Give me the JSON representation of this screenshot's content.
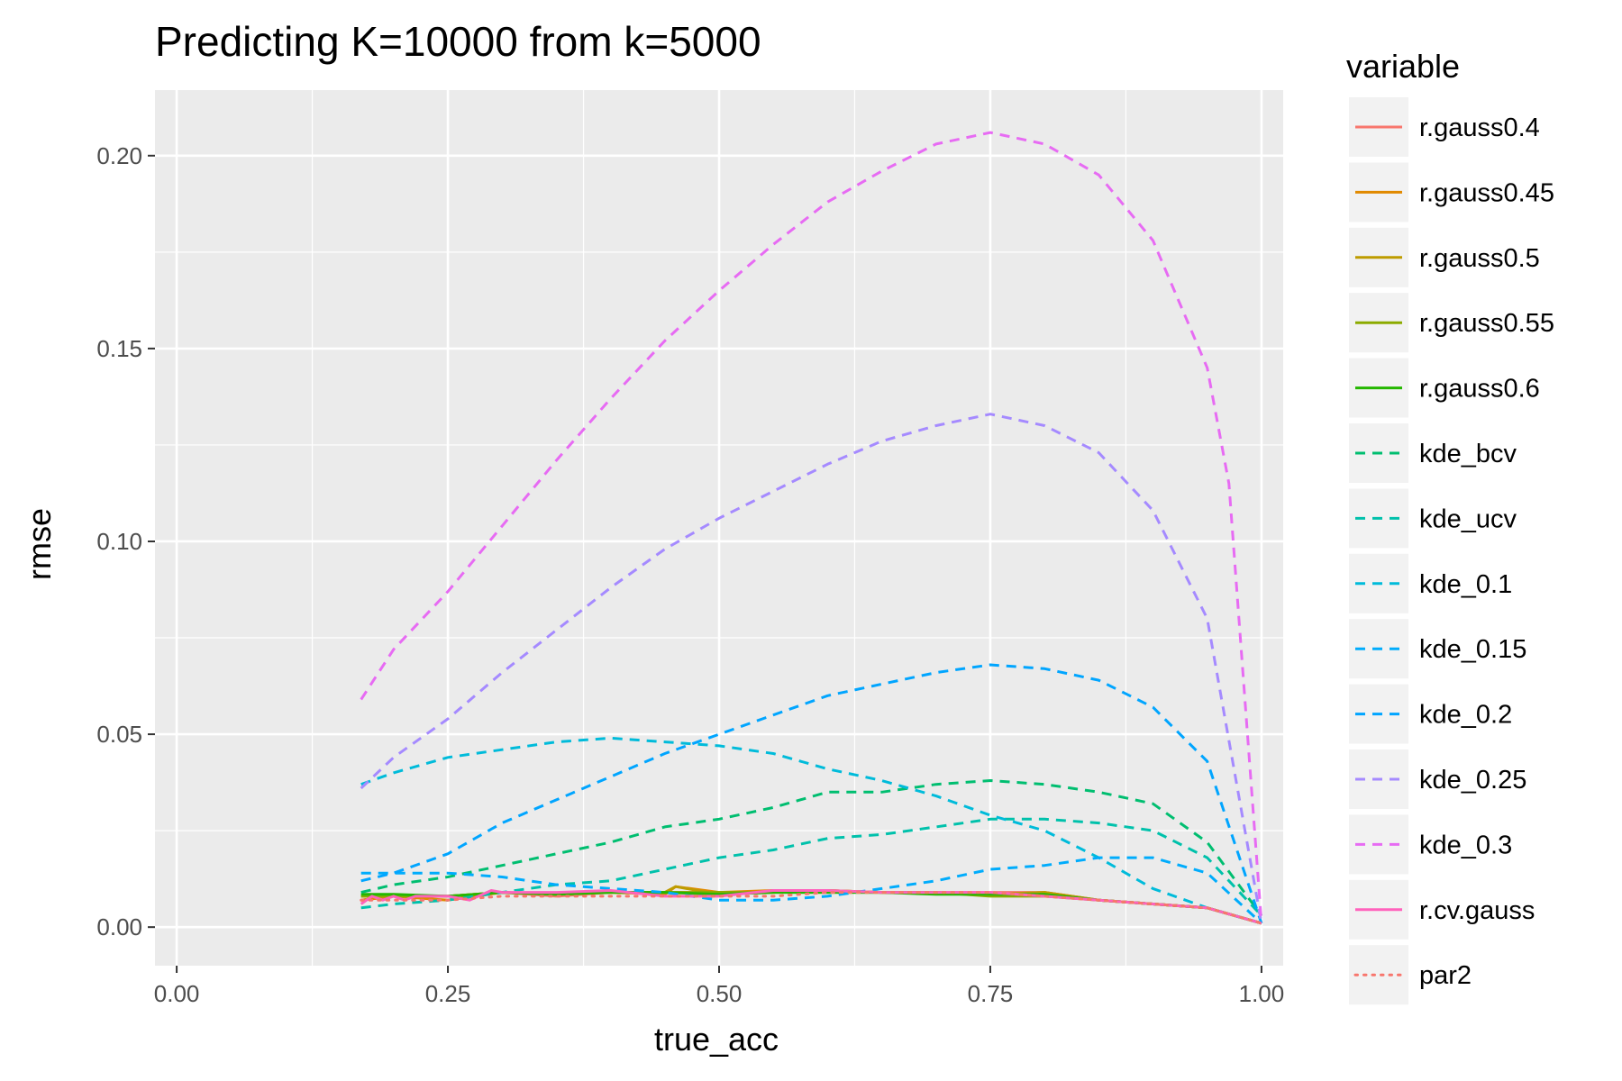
{
  "chart_data": {
    "type": "line",
    "title": "Predicting K=10000 from k=5000",
    "xlabel": "true_acc",
    "ylabel": "rmse",
    "xlim": [
      -0.02,
      1.02
    ],
    "ylim": [
      -0.01,
      0.217
    ],
    "x_ticks": [
      0.0,
      0.25,
      0.5,
      0.75,
      1.0
    ],
    "x_tick_labels": [
      "0.00",
      "0.25",
      "0.50",
      "0.75",
      "1.00"
    ],
    "y_ticks": [
      0.0,
      0.05,
      0.1,
      0.15,
      0.2
    ],
    "y_tick_labels": [
      "0.00",
      "0.05",
      "0.10",
      "0.15",
      "0.20"
    ],
    "grid": true,
    "legend_title": "variable",
    "legend_position": "right",
    "series": [
      {
        "name": "r.gauss0.4",
        "color": "#F8766D",
        "dash": "solid",
        "x": [
          0.17,
          0.2,
          0.25,
          0.3,
          0.35,
          0.4,
          0.45,
          0.5,
          0.55,
          0.6,
          0.65,
          0.7,
          0.75,
          0.8,
          0.85,
          0.9,
          0.95,
          1.0
        ],
        "y": [
          0.007,
          0.008,
          0.008,
          0.009,
          0.008,
          0.009,
          0.009,
          0.009,
          0.009,
          0.0095,
          0.009,
          0.009,
          0.009,
          0.009,
          0.007,
          0.006,
          0.005,
          0.001
        ]
      },
      {
        "name": "r.gauss0.45",
        "color": "#E18A00",
        "dash": "solid",
        "x": [
          0.17,
          0.2,
          0.25,
          0.3,
          0.35,
          0.4,
          0.45,
          0.46,
          0.5,
          0.55,
          0.6,
          0.65,
          0.7,
          0.75,
          0.8,
          0.85,
          0.9,
          0.95,
          1.0
        ],
        "y": [
          0.007,
          0.008,
          0.007,
          0.009,
          0.0085,
          0.009,
          0.0085,
          0.0105,
          0.009,
          0.0095,
          0.0095,
          0.009,
          0.009,
          0.0085,
          0.009,
          0.007,
          0.006,
          0.005,
          0.001
        ]
      },
      {
        "name": "r.gauss0.5",
        "color": "#BE9C00",
        "dash": "solid",
        "x": [
          0.17,
          0.2,
          0.25,
          0.3,
          0.35,
          0.4,
          0.45,
          0.46,
          0.5,
          0.55,
          0.6,
          0.65,
          0.7,
          0.75,
          0.8,
          0.85,
          0.9,
          0.95,
          1.0
        ],
        "y": [
          0.008,
          0.008,
          0.008,
          0.009,
          0.0085,
          0.009,
          0.009,
          0.0105,
          0.0085,
          0.009,
          0.0095,
          0.009,
          0.009,
          0.0085,
          0.009,
          0.007,
          0.006,
          0.005,
          0.001
        ]
      },
      {
        "name": "r.gauss0.55",
        "color": "#8CAB00",
        "dash": "solid",
        "x": [
          0.17,
          0.2,
          0.25,
          0.3,
          0.35,
          0.4,
          0.45,
          0.5,
          0.55,
          0.6,
          0.65,
          0.7,
          0.75,
          0.8,
          0.85,
          0.9,
          0.95,
          1.0
        ],
        "y": [
          0.008,
          0.008,
          0.008,
          0.009,
          0.0085,
          0.009,
          0.009,
          0.009,
          0.009,
          0.009,
          0.009,
          0.009,
          0.008,
          0.008,
          0.007,
          0.006,
          0.005,
          0.001
        ]
      },
      {
        "name": "r.gauss0.6",
        "color": "#24B700",
        "dash": "solid",
        "x": [
          0.17,
          0.2,
          0.25,
          0.3,
          0.35,
          0.4,
          0.45,
          0.5,
          0.55,
          0.6,
          0.65,
          0.7,
          0.75,
          0.8,
          0.85,
          0.9,
          0.95,
          1.0
        ],
        "y": [
          0.0085,
          0.0085,
          0.008,
          0.009,
          0.0085,
          0.009,
          0.009,
          0.0085,
          0.009,
          0.009,
          0.009,
          0.0085,
          0.0085,
          0.0085,
          0.007,
          0.006,
          0.005,
          0.001
        ]
      },
      {
        "name": "kde_bcv",
        "color": "#00BE70",
        "dash": "dashed",
        "x": [
          0.17,
          0.2,
          0.25,
          0.3,
          0.35,
          0.4,
          0.45,
          0.5,
          0.55,
          0.6,
          0.65,
          0.7,
          0.75,
          0.8,
          0.85,
          0.9,
          0.95,
          1.0
        ],
        "y": [
          0.009,
          0.011,
          0.013,
          0.016,
          0.019,
          0.022,
          0.026,
          0.028,
          0.031,
          0.035,
          0.035,
          0.037,
          0.038,
          0.037,
          0.035,
          0.032,
          0.022,
          0.003
        ]
      },
      {
        "name": "kde_ucv",
        "color": "#00C1AB",
        "dash": "dashed",
        "x": [
          0.17,
          0.2,
          0.25,
          0.3,
          0.35,
          0.4,
          0.45,
          0.5,
          0.55,
          0.6,
          0.65,
          0.7,
          0.75,
          0.8,
          0.85,
          0.9,
          0.95,
          1.0
        ],
        "y": [
          0.005,
          0.006,
          0.007,
          0.009,
          0.011,
          0.012,
          0.015,
          0.018,
          0.02,
          0.023,
          0.024,
          0.026,
          0.028,
          0.028,
          0.027,
          0.025,
          0.018,
          0.003
        ]
      },
      {
        "name": "kde_0.1",
        "color": "#00BBDA",
        "dash": "dashed",
        "x": [
          0.17,
          0.2,
          0.25,
          0.3,
          0.35,
          0.4,
          0.45,
          0.5,
          0.55,
          0.6,
          0.65,
          0.7,
          0.75,
          0.8,
          0.85,
          0.9,
          0.95,
          1.0
        ],
        "y": [
          0.037,
          0.04,
          0.044,
          0.046,
          0.048,
          0.049,
          0.048,
          0.047,
          0.045,
          0.041,
          0.038,
          0.034,
          0.029,
          0.025,
          0.018,
          0.01,
          0.005,
          0.001
        ]
      },
      {
        "name": "kde_0.15",
        "color": "#00ACFC",
        "dash": "dashed",
        "x": [
          0.17,
          0.2,
          0.25,
          0.3,
          0.35,
          0.4,
          0.45,
          0.5,
          0.55,
          0.6,
          0.65,
          0.7,
          0.75,
          0.8,
          0.85,
          0.9,
          0.95,
          1.0
        ],
        "y": [
          0.014,
          0.014,
          0.014,
          0.013,
          0.011,
          0.01,
          0.009,
          0.007,
          0.007,
          0.008,
          0.01,
          0.012,
          0.015,
          0.016,
          0.018,
          0.018,
          0.014,
          0.001
        ]
      },
      {
        "name": "kde_0.2",
        "color": "#00A5FF",
        "dash": "dashed",
        "x": [
          0.17,
          0.2,
          0.25,
          0.3,
          0.35,
          0.4,
          0.45,
          0.5,
          0.55,
          0.6,
          0.65,
          0.7,
          0.75,
          0.8,
          0.85,
          0.9,
          0.95,
          1.0
        ],
        "y": [
          0.012,
          0.014,
          0.019,
          0.027,
          0.033,
          0.039,
          0.045,
          0.05,
          0.055,
          0.06,
          0.063,
          0.066,
          0.068,
          0.067,
          0.064,
          0.057,
          0.043,
          0.001
        ]
      },
      {
        "name": "kde_0.25",
        "color": "#A58AFF",
        "dash": "dashed",
        "x": [
          0.17,
          0.2,
          0.25,
          0.3,
          0.35,
          0.4,
          0.45,
          0.5,
          0.55,
          0.6,
          0.65,
          0.7,
          0.75,
          0.8,
          0.85,
          0.9,
          0.95,
          1.0
        ],
        "y": [
          0.036,
          0.044,
          0.054,
          0.066,
          0.077,
          0.088,
          0.098,
          0.106,
          0.113,
          0.12,
          0.126,
          0.13,
          0.133,
          0.13,
          0.123,
          0.108,
          0.08,
          0.001
        ]
      },
      {
        "name": "kde_0.3",
        "color": "#E76BF3",
        "dash": "dashed",
        "x": [
          0.17,
          0.2,
          0.25,
          0.3,
          0.35,
          0.4,
          0.45,
          0.5,
          0.55,
          0.6,
          0.65,
          0.7,
          0.75,
          0.8,
          0.85,
          0.9,
          0.95,
          0.97,
          1.0
        ],
        "y": [
          0.059,
          0.072,
          0.087,
          0.104,
          0.121,
          0.137,
          0.152,
          0.165,
          0.177,
          0.188,
          0.196,
          0.203,
          0.206,
          0.203,
          0.195,
          0.178,
          0.145,
          0.115,
          0.001
        ]
      },
      {
        "name": "r.cv.gauss",
        "color": "#FF62BC",
        "dash": "solid",
        "x": [
          0.17,
          0.18,
          0.19,
          0.2,
          0.21,
          0.22,
          0.25,
          0.27,
          0.29,
          0.3,
          0.35,
          0.4,
          0.45,
          0.5,
          0.55,
          0.6,
          0.65,
          0.7,
          0.75,
          0.8,
          0.85,
          0.9,
          0.95,
          1.0
        ],
        "y": [
          0.006,
          0.008,
          0.007,
          0.008,
          0.007,
          0.008,
          0.008,
          0.007,
          0.0095,
          0.009,
          0.009,
          0.0095,
          0.008,
          0.008,
          0.0095,
          0.0095,
          0.009,
          0.009,
          0.009,
          0.008,
          0.007,
          0.006,
          0.005,
          0.001
        ]
      },
      {
        "name": "par2",
        "color": "#F8766D",
        "dash": "dotted",
        "x": [
          0.17,
          0.2,
          0.25,
          0.3,
          0.35,
          0.4,
          0.45,
          0.5,
          0.55,
          0.6,
          0.65,
          0.7,
          0.75,
          0.8,
          0.85,
          0.9,
          0.95,
          1.0
        ],
        "y": [
          0.007,
          0.007,
          0.007,
          0.008,
          0.008,
          0.008,
          0.008,
          0.008,
          0.008,
          0.009,
          0.009,
          0.009,
          0.009,
          0.008,
          0.007,
          0.006,
          0.005,
          0.001
        ]
      }
    ]
  }
}
